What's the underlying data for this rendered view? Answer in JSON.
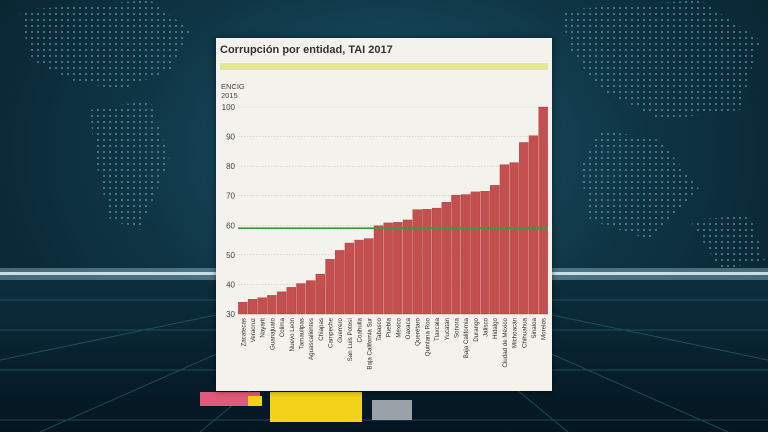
{
  "chart_data": {
    "type": "bar",
    "title": "Corrupción por entidad, TAI 2017",
    "ylabel_lines": [
      "ENCIG",
      "2015"
    ],
    "ylim": [
      30,
      100
    ],
    "yticks": [
      30,
      40,
      50,
      60,
      70,
      80,
      90,
      100
    ],
    "grid": true,
    "reference_line": 59,
    "categories": [
      "Zacatecas",
      "Veracruz",
      "Nayarit",
      "Guanajuato",
      "Colima",
      "Nuevo León",
      "Tamaulipas",
      "Aguascalientes",
      "Chiapas",
      "Campeche",
      "Guerrero",
      "San Luis Potosí",
      "Coahuila",
      "Baja California Sur",
      "Tabasco",
      "Puebla",
      "México",
      "Oaxaca",
      "Querétaro",
      "Quintana Roo",
      "Tlaxcala",
      "Yucatán",
      "Sonora",
      "Baja California",
      "Durango",
      "Jalisco",
      "Hidalgo",
      "Ciudad de México",
      "Michoacán",
      "Chihuahua",
      "Sinaloa",
      "Morelos"
    ],
    "values": [
      34,
      35,
      35.5,
      36.3,
      37.5,
      39,
      40.3,
      41.3,
      43.5,
      48.5,
      51.5,
      54,
      55,
      55.5,
      59.8,
      60.8,
      61,
      61.8,
      65.3,
      65.4,
      65.8,
      67.8,
      70.2,
      70.4,
      71.3,
      71.5,
      73.5,
      80.5,
      81.2,
      88,
      90.3,
      100
    ],
    "colors": {
      "bar": "#c44f4f",
      "bar_edge": "#a83838",
      "reference": "#3c9a3c",
      "band": "#e3e69a",
      "grid": "#c9c7bf"
    }
  }
}
